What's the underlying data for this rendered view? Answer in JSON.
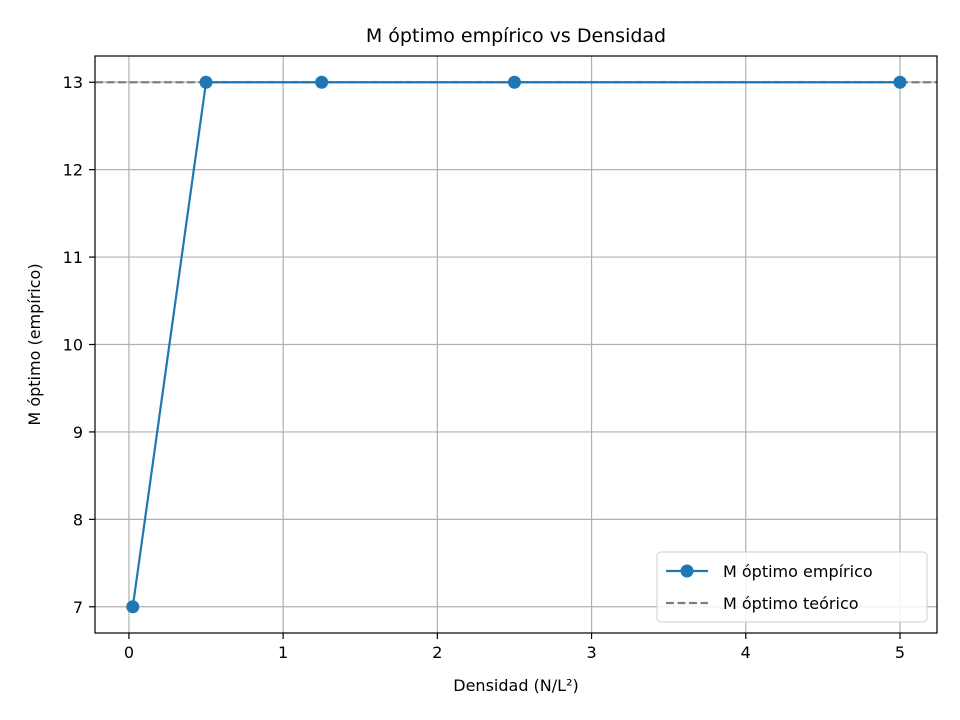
{
  "chart_data": {
    "type": "line",
    "title": "M óptimo empírico vs Densidad",
    "xlabel": "Densidad (N/L²)",
    "ylabel": "M óptimo (empírico)",
    "xlim": [
      -0.22,
      5.24
    ],
    "ylim": [
      6.7,
      13.3
    ],
    "xticks": [
      0,
      1,
      2,
      3,
      4,
      5
    ],
    "yticks": [
      7,
      8,
      9,
      10,
      11,
      12,
      13
    ],
    "grid": true,
    "legend_position": "lower-right",
    "series": [
      {
        "name": "M óptimo empírico",
        "style": "solid-with-markers",
        "color": "#1f77b4",
        "x": [
          0.025,
          0.5,
          1.25,
          2.5,
          5.0
        ],
        "y": [
          7,
          13,
          13,
          13,
          13
        ]
      }
    ],
    "reference_lines": [
      {
        "name": "M óptimo teórico",
        "orientation": "horizontal",
        "style": "dashed",
        "color": "#7f7f7f",
        "y": 13
      }
    ]
  }
}
